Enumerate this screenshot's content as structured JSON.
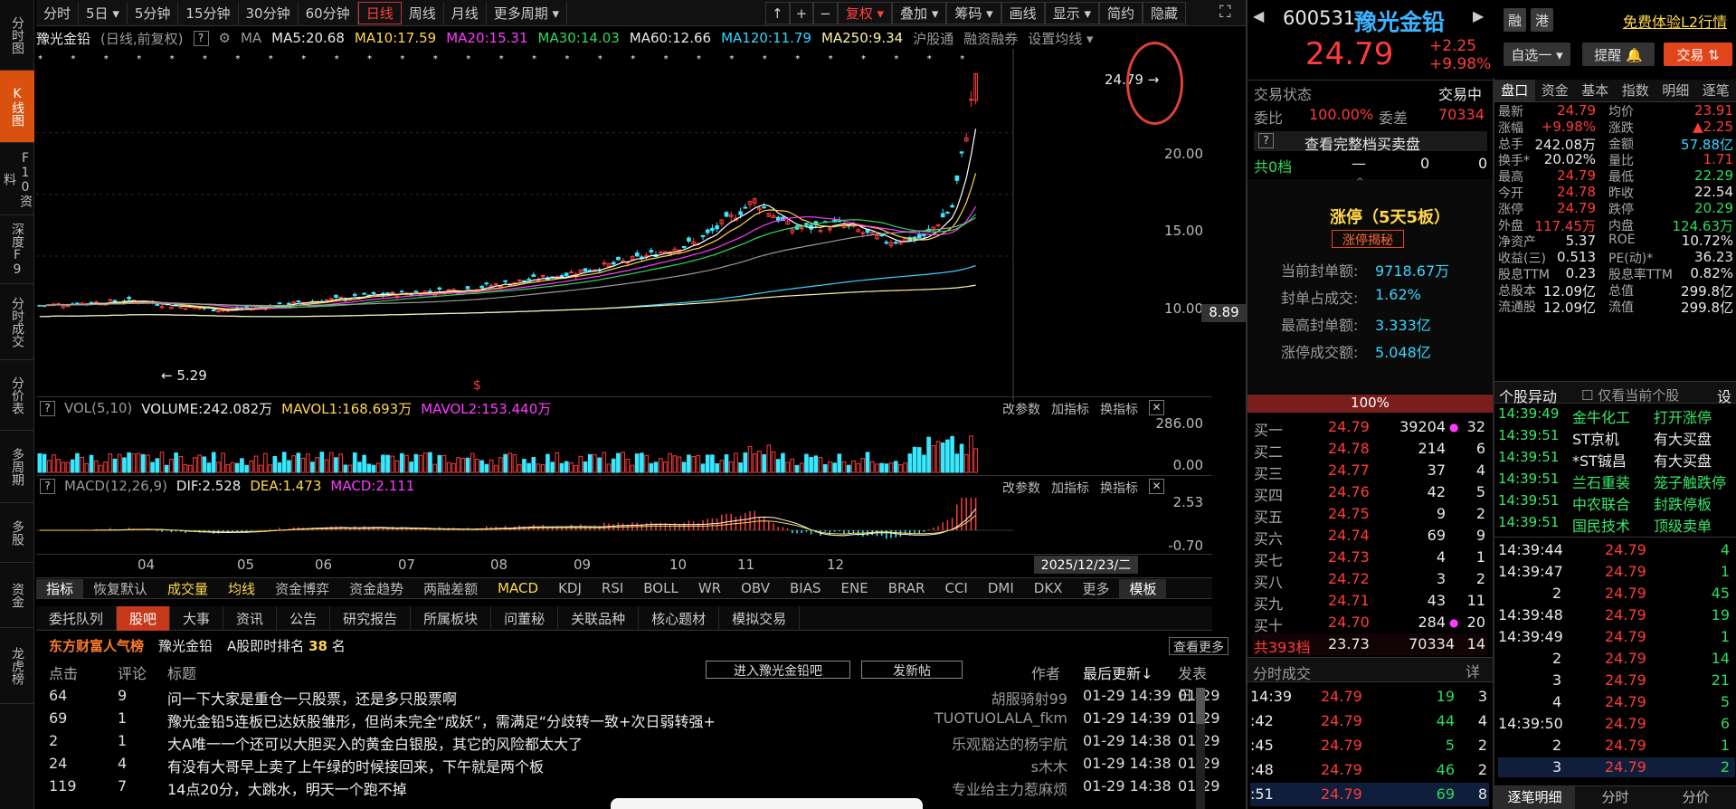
{
  "nav": {
    "left": [
      "分时图",
      "K线图",
      "F10资料",
      "深度F9",
      "分时成交",
      "分价表",
      "多周期",
      "多股",
      "资金",
      "龙虎榜"
    ]
  },
  "toolbar": {
    "periods": [
      "分时",
      "5日 ▾",
      "5分钟",
      "15分钟",
      "30分钟",
      "60分钟",
      "日线",
      "周线",
      "月线",
      "更多周期 ▾"
    ],
    "active": "日线",
    "right": [
      "复权 ▾",
      "叠加 ▾",
      "筹码 ▾",
      "画线",
      "显示 ▾",
      "简约",
      "隐藏"
    ]
  },
  "chart": {
    "ma_line": {
      "name": "豫光金铅",
      "adj": "(日线,前复权)",
      "ma": "MA",
      "ma5": "MA5:20.68",
      "ma10": "MA10:17.59",
      "ma20": "MA20:15.31",
      "ma30": "MA30:14.03",
      "ma60": "MA60:12.66",
      "ma120": "MA120:11.79",
      "ma250": "MA250:9.34",
      "hgt": "沪股通",
      "rzrq": "融资融券",
      "set": "设置均线 ▾"
    },
    "yaxis": [
      "20.00",
      "15.00",
      "10.00"
    ],
    "cur_tag": "8.89",
    "high_label": "24.79",
    "low_label": "5.29",
    "xaxis": [
      "04",
      "05",
      "06",
      "07",
      "08",
      "09",
      "10",
      "11",
      "12"
    ],
    "date_tag": "2025/12/23/二",
    "colors": {
      "up": "#ff3b3b",
      "down": "#37e8ff",
      "ma5": "#ffffff",
      "ma10": "#ffd84a",
      "ma20": "#ff3bff",
      "ma30": "#2ddc5a",
      "ma60": "#9a9a9a",
      "ma120": "#37d6ff",
      "ma250": "#fff2a8"
    }
  },
  "vol": {
    "label": "VOL(5,10)",
    "volume": "VOLUME:242.082万",
    "mavol1": "MAVOL1:168.693万",
    "mavol2": "MAVOL2:153.440万",
    "y": [
      "286.00",
      "0.00"
    ],
    "btns": [
      "改参数",
      "加指标",
      "换指标"
    ]
  },
  "macd": {
    "label": "MACD(12,26,9)",
    "dif": "DIF:2.528",
    "dea": "DEA:1.473",
    "macd": "MACD:2.111",
    "y": [
      "2.53",
      "-0.70"
    ],
    "btns": [
      "改参数",
      "加指标",
      "换指标"
    ]
  },
  "indicators": [
    "指标",
    "恢复默认",
    "成交量",
    "均线",
    "资金博弈",
    "资金趋势",
    "两融差额",
    "MACD",
    "KDJ",
    "RSI",
    "BOLL",
    "WR",
    "OBV",
    "BIAS",
    "ENE",
    "BRAR",
    "CCI",
    "DMI",
    "DKX",
    "更多",
    "模板"
  ],
  "btabs": [
    "委托队列",
    "股吧",
    "大事",
    "资讯",
    "公告",
    "研究报告",
    "所属板块",
    "问董秘",
    "关联品种",
    "核心题材",
    "模拟交易"
  ],
  "rank": {
    "title": "东方财富人气榜",
    "name": "豫光金铅",
    "label": "A股即时排名",
    "num": "38",
    "unit": "名",
    "more": "查看更多"
  },
  "list": {
    "h_click": "点击",
    "h_reply": "评论",
    "h_title": "标题",
    "enter": "进入豫光金铅吧",
    "post": "发新帖",
    "h_author": "作者",
    "h_update": "最后更新↓",
    "h_pub": "发表日↓",
    "rows": [
      {
        "c": "64",
        "r": "9",
        "t": "问一下大家是重仓一只股票，还是多只股票啊",
        "a": "胡服骑射99",
        "u": "01-29 14:39",
        "p": "01-29"
      },
      {
        "c": "69",
        "r": "1",
        "t": "豫光金铅5连板已达妖股雏形，但尚未完全“成妖”，需满足“分歧转一致+次日弱转强+",
        "a": "TUOTUOLALA_fkm",
        "u": "01-29 14:39",
        "p": "01-29"
      },
      {
        "c": "2",
        "r": "1",
        "t": "大A唯一一个还可以大胆买入的黄金白银股，其它的风险都太大了",
        "a": "乐观豁达的杨宇航",
        "u": "01-29 14:38",
        "p": "01-29"
      },
      {
        "c": "24",
        "r": "4",
        "t": "有没有大哥早上卖了上午绿的时候接回来，下午就是两个板",
        "a": "s木木",
        "u": "01-29 14:38",
        "p": "01-29"
      },
      {
        "c": "119",
        "r": "7",
        "t": "14点20分，大跳水，明天一个跑不掉",
        "a": "专业给主力惹麻烦",
        "u": "01-29 14:38",
        "p": "01-29"
      }
    ]
  },
  "stock": {
    "code": "600531",
    "name": "豫光金铅",
    "price": "24.79",
    "chg": "+2.25",
    "pct": "+9.98%",
    "tags": [
      "融",
      "港"
    ],
    "l2": "免费体验L2行情",
    "zixuan": "自选一 ▾",
    "alert": "提醒 🔔",
    "trade": "交易 ⇅"
  },
  "status": {
    "label": "交易状态",
    "value": "交易中",
    "wb": "委比",
    "wb_v": "100.00%",
    "wc": "委差",
    "wc_v": "70334",
    "full": "查看完整档买卖盘",
    "g0": "共0档",
    "g0a": "—",
    "g0b": "0",
    "g0c": "0"
  },
  "limit": {
    "title": "涨停（5天5板）",
    "btn": "涨停揭秘",
    "r1l": "当前封单额:",
    "r1v": "9718.67万",
    "r2l": "封单占成交:",
    "r2v": "1.62%",
    "r3l": "最高封单额:",
    "r3v": "3.333亿",
    "r4l": "涨停成交额:",
    "r4v": "5.048亿",
    "pct": "100%"
  },
  "orderbook": [
    {
      "l": "买一",
      "p": "24.79",
      "v": "39204",
      "n": "32",
      "dot": true
    },
    {
      "l": "买二",
      "p": "24.78",
      "v": "214",
      "n": "6"
    },
    {
      "l": "买三",
      "p": "24.77",
      "v": "37",
      "n": "4"
    },
    {
      "l": "买四",
      "p": "24.76",
      "v": "42",
      "n": "5"
    },
    {
      "l": "买五",
      "p": "24.75",
      "v": "9",
      "n": "2"
    },
    {
      "l": "买六",
      "p": "24.74",
      "v": "69",
      "n": "9"
    },
    {
      "l": "买七",
      "p": "24.73",
      "v": "4",
      "n": "1"
    },
    {
      "l": "买八",
      "p": "24.72",
      "v": "3",
      "n": "2"
    },
    {
      "l": "买九",
      "p": "24.71",
      "v": "43",
      "n": "11"
    },
    {
      "l": "买十",
      "p": "24.70",
      "v": "284",
      "n": "20",
      "dot": true
    }
  ],
  "total": {
    "l": "共393档",
    "p": "23.73",
    "v": "70334",
    "n": "14"
  },
  "ticks": {
    "title": "分时成交",
    "btn": "详",
    "rows": [
      {
        "t": "14:39",
        "p": "24.79",
        "v": "19",
        "n": "3"
      },
      {
        "t": ":42",
        "p": "24.79",
        "v": "44",
        "n": "4"
      },
      {
        "t": ":45",
        "p": "24.79",
        "v": "5",
        "n": "2"
      },
      {
        "t": ":48",
        "p": "24.79",
        "v": "46",
        "n": "2"
      },
      {
        "t": ":51",
        "p": "24.79",
        "v": "69",
        "n": "8"
      }
    ]
  },
  "quote": {
    "tabs": [
      "盘口",
      "资金",
      "基本",
      "指数",
      "明细",
      "逐笔"
    ],
    "rows": [
      [
        "最新",
        "24.79",
        "均价",
        "23.91"
      ],
      [
        "涨幅",
        "+9.98%",
        "涨跌",
        "▲2.25"
      ],
      [
        "总手",
        "242.08万",
        "金额",
        "57.88亿"
      ],
      [
        "换手*",
        "20.02%",
        "量比",
        "1.71"
      ],
      [
        "最高",
        "24.79",
        "最低",
        "22.29"
      ],
      [
        "今开",
        "24.78",
        "昨收",
        "22.54"
      ],
      [
        "涨停",
        "24.79",
        "跌停",
        "20.29"
      ],
      [
        "外盘",
        "117.45万",
        "内盘",
        "124.63万"
      ],
      [
        "净资产",
        "5.37",
        "ROE",
        "10.72%"
      ],
      [
        "收益(三)",
        "0.513",
        "PE(动)*",
        "36.23"
      ],
      [
        "股息TTM",
        "0.23",
        "股息率TTM",
        "0.82%"
      ],
      [
        "总股本",
        "12.09亿",
        "总值",
        "299.8亿"
      ],
      [
        "流通股",
        "12.09亿",
        "流值",
        "299.8亿"
      ]
    ]
  },
  "moves": {
    "title": "个股异动",
    "only": "仅看当前个股",
    "set": "设",
    "rows": [
      {
        "t": "14:39:49",
        "s": "金牛化工",
        "e": "打开涨停"
      },
      {
        "t": "14:39:51",
        "s": "ST京机",
        "e": "有大买盘"
      },
      {
        "t": "14:39:51",
        "s": "*ST铖昌",
        "e": "有大买盘"
      },
      {
        "t": "14:39:51",
        "s": "兰石重装",
        "e": "笼子触跌停"
      },
      {
        "t": "14:39:51",
        "s": "中农联合",
        "e": "封跌停板"
      },
      {
        "t": "14:39:51",
        "s": "国民技术",
        "e": "顶级卖单"
      }
    ]
  },
  "detail": {
    "rows": [
      {
        "t": "14:39:44",
        "p": "24.79",
        "v": "4"
      },
      {
        "t": "14:39:47",
        "p": "24.79",
        "v": "1"
      },
      {
        "t": "2",
        "p": "24.79",
        "v": "45"
      },
      {
        "t": "14:39:48",
        "p": "24.79",
        "v": "19"
      },
      {
        "t": "14:39:49",
        "p": "24.79",
        "v": "1"
      },
      {
        "t": "2",
        "p": "24.79",
        "v": "14"
      },
      {
        "t": "3",
        "p": "24.79",
        "v": "21"
      },
      {
        "t": "4",
        "p": "24.79",
        "v": "5"
      },
      {
        "t": "14:39:50",
        "p": "24.79",
        "v": "6"
      },
      {
        "t": "2",
        "p": "24.79",
        "v": "1"
      },
      {
        "t": "3",
        "p": "24.79",
        "v": "2"
      }
    ],
    "tabs": [
      "逐笔明细",
      "分时",
      "分价"
    ]
  }
}
